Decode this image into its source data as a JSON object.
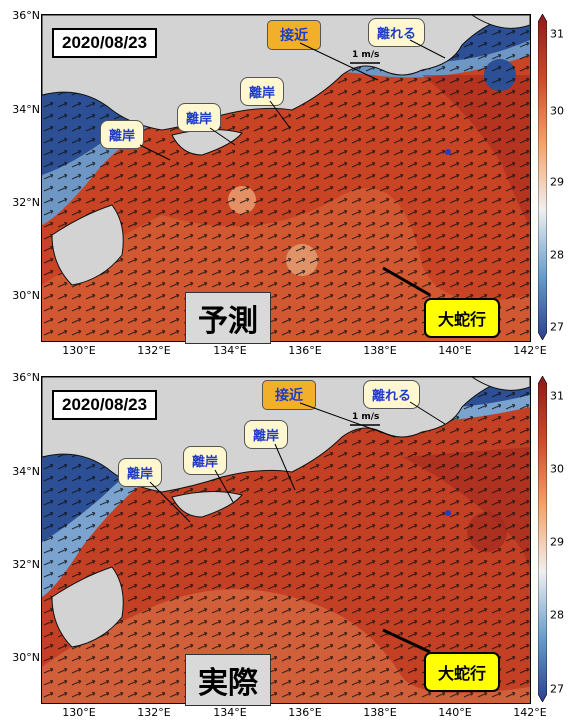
{
  "panels": [
    {
      "date": "2020/08/23",
      "kind": "予測",
      "kuroshio_label": "大蛇行",
      "approach_label": "接近",
      "leave_labels": [
        "離岸",
        "離岸",
        "離岸",
        "離れる"
      ]
    },
    {
      "date": "2020/08/23",
      "kind": "実際",
      "kuroshio_label": "大蛇行",
      "approach_label": "接近",
      "leave_labels": [
        "離岸",
        "離岸",
        "離岸",
        "離れる"
      ]
    }
  ],
  "axes": {
    "lat_labels": [
      "36°N",
      "34°N",
      "32°N",
      "30°N"
    ],
    "lon_labels": [
      "130°E",
      "132°E",
      "134°E",
      "136°E",
      "138°E",
      "140°E",
      "142°E"
    ]
  },
  "colorbar": {
    "ticks": [
      "31",
      "30",
      "29",
      "28",
      "27"
    ],
    "colors": [
      "#2c3f8f",
      "#6a9fcb",
      "#f0f0f0",
      "#f5a46a",
      "#d04a2a",
      "#8e1a1a"
    ]
  },
  "scale_text": "1 m/s",
  "colors": {
    "land": "#d3d3d3",
    "sea_warm": "#cf4a26",
    "sea_cool": "#6f97c6",
    "callout_bg": "#fff7cf",
    "approach_bg": "#f2b02a",
    "kuroshio_bg": "#ffff00"
  }
}
